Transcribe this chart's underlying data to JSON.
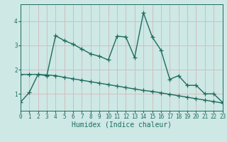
{
  "xlabel": "Humidex (Indice chaleur)",
  "bg_color": "#cde8e5",
  "grid_color": "#d4b8b8",
  "line_color": "#1e6b5e",
  "x_vals": [
    0,
    1,
    2,
    3,
    4,
    5,
    6,
    7,
    8,
    9,
    10,
    11,
    12,
    13,
    14,
    15,
    16,
    17,
    18,
    19,
    20,
    21,
    22,
    23
  ],
  "y_line1": [
    0.65,
    1.05,
    1.8,
    1.75,
    3.4,
    3.2,
    3.05,
    2.85,
    2.65,
    2.55,
    2.4,
    3.38,
    3.35,
    2.5,
    4.35,
    3.35,
    2.8,
    1.6,
    1.75,
    1.35,
    1.35,
    1.0,
    1.0,
    0.65
  ],
  "y_line2": [
    1.8,
    1.8,
    1.8,
    1.78,
    1.75,
    1.68,
    1.62,
    1.56,
    1.5,
    1.44,
    1.38,
    1.32,
    1.26,
    1.2,
    1.14,
    1.1,
    1.04,
    0.98,
    0.92,
    0.86,
    0.8,
    0.74,
    0.68,
    0.62
  ],
  "xlim": [
    0,
    23
  ],
  "ylim": [
    0.3,
    4.7
  ],
  "yticks": [
    1,
    2,
    3,
    4
  ],
  "xticks": [
    0,
    1,
    2,
    3,
    4,
    5,
    6,
    7,
    8,
    9,
    10,
    11,
    12,
    13,
    14,
    15,
    16,
    17,
    18,
    19,
    20,
    21,
    22,
    23
  ],
  "marker": "+",
  "markersize": 4,
  "linewidth": 1.0,
  "tick_fontsize": 5.5,
  "xlabel_fontsize": 7
}
